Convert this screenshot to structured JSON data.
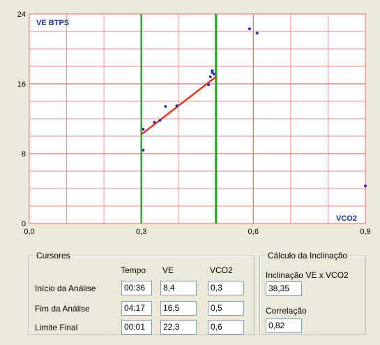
{
  "chart": {
    "series_label": "VE BTPS",
    "x_axis_label": "VCO2",
    "x_ticks": [
      "0,0",
      "0,3",
      "0,6",
      "0,9"
    ],
    "y_ticks": [
      "0",
      "8",
      "16",
      "24"
    ],
    "colors": {
      "background": "#ffffff",
      "grid": "#ea6a6a",
      "cursor_line": "#2eac2e",
      "regression_line": "#e3351b",
      "point": "#2d2db3",
      "label": "#1b2f9c"
    }
  },
  "chart_data": {
    "type": "scatter",
    "xlabel": "VCO2",
    "ylabel": "VE BTPS",
    "xlim": [
      0.0,
      0.9
    ],
    "ylim": [
      0,
      24
    ],
    "grid": true,
    "x_ticks": [
      0.0,
      0.3,
      0.6,
      0.9
    ],
    "y_ticks": [
      0,
      8,
      16,
      24
    ],
    "series": [
      {
        "name": "VE BTPS",
        "points": [
          [
            0.305,
            8.4
          ],
          [
            0.305,
            10.8
          ],
          [
            0.335,
            11.6
          ],
          [
            0.35,
            11.8
          ],
          [
            0.365,
            13.4
          ],
          [
            0.395,
            13.5
          ],
          [
            0.48,
            15.9
          ],
          [
            0.485,
            16.8
          ],
          [
            0.49,
            17.3
          ],
          [
            0.49,
            17.5
          ],
          [
            0.495,
            17.1
          ],
          [
            0.59,
            22.3
          ],
          [
            0.61,
            21.8
          ],
          [
            0.9,
            4.3
          ]
        ]
      }
    ],
    "regression": {
      "x": [
        0.3,
        0.5
      ],
      "y": [
        10.2,
        16.8
      ]
    },
    "cursors": [
      {
        "x": 0.3
      },
      {
        "x": 0.5
      }
    ]
  },
  "cursors_panel": {
    "title": "Cursores",
    "columns": [
      "Tempo",
      "VE",
      "VCO2"
    ],
    "rows": [
      {
        "label": "Início da Análise",
        "tempo": "00:36",
        "ve": "8,4",
        "vco2": "0,3"
      },
      {
        "label": "Fim da Análise",
        "tempo": "04:17",
        "ve": "16,5",
        "vco2": "0,5"
      },
      {
        "label": "Limite Final",
        "tempo": "00:01",
        "ve": "22,3",
        "vco2": "0,6"
      }
    ]
  },
  "slope_panel": {
    "title": "Cálculo da Inclinação",
    "slope_label": "Inclinação VE x VCO2",
    "slope_value": "38,35",
    "correlation_label": "Correlação",
    "correlation_value": "0,82"
  }
}
